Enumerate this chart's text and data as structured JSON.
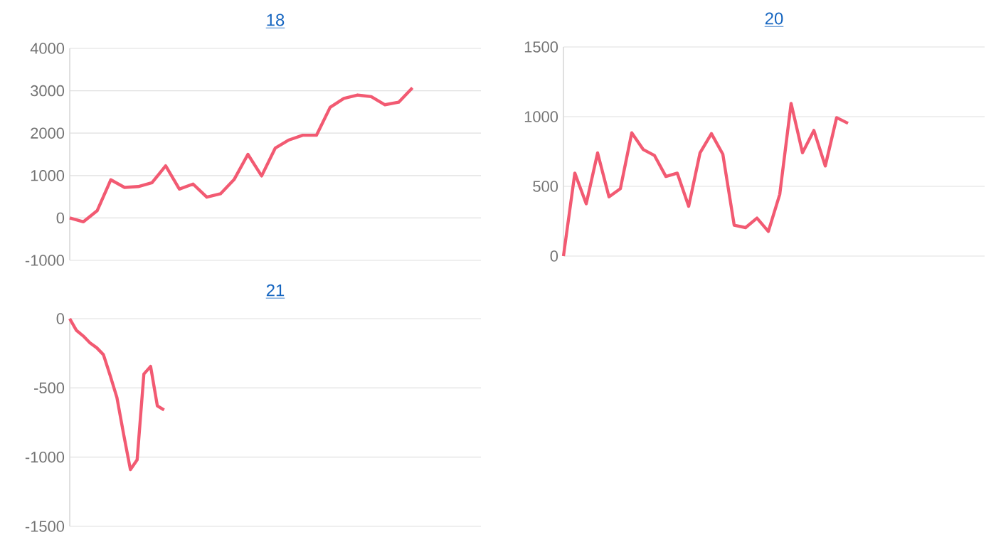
{
  "chart_data": [
    {
      "type": "line",
      "title": "18",
      "categories": [
        null,
        null,
        null,
        null,
        null,
        null,
        null,
        null,
        null,
        null,
        null,
        null,
        null,
        null,
        null,
        null,
        null,
        null,
        null,
        null,
        null,
        null,
        null,
        null,
        null,
        null,
        null,
        null,
        null,
        null,
        null
      ],
      "values": [
        0,
        -90,
        170,
        900,
        720,
        740,
        830,
        1230,
        680,
        800,
        490,
        570,
        910,
        1500,
        990,
        1650,
        1840,
        1950,
        1950,
        2610,
        2820,
        2900,
        2860,
        2670,
        2730,
        3070,
        null,
        null,
        null,
        null,
        null
      ],
      "color": "#f25a72",
      "ylim": [
        -1000,
        4000
      ],
      "yticks": [
        -1000,
        0,
        1000,
        2000,
        3000,
        4000
      ],
      "grid": "y",
      "tick_labels": "y"
    },
    {
      "type": "line",
      "title": "20",
      "categories": [
        null,
        null,
        null,
        null,
        null,
        null,
        null,
        null,
        null,
        null,
        null,
        null,
        null,
        null,
        null,
        null,
        null,
        null,
        null,
        null,
        null,
        null,
        null,
        null,
        null,
        null,
        null,
        null,
        null,
        null,
        null,
        null,
        null,
        null,
        null,
        null,
        null,
        null
      ],
      "values": [
        0,
        595,
        375,
        740,
        425,
        483,
        884,
        765,
        721,
        571,
        595,
        357,
        741,
        878,
        731,
        221,
        204,
        272,
        177,
        442,
        1095,
        741,
        901,
        646,
        993,
        952,
        null,
        null,
        null,
        null,
        null,
        null,
        null,
        null,
        null,
        null,
        null,
        null
      ],
      "color": "#f25a72",
      "ylim": [
        0,
        1500
      ],
      "yticks": [
        0,
        500,
        1000,
        1500
      ],
      "grid": "y",
      "tick_labels": "y"
    },
    {
      "type": "line",
      "title": "21",
      "categories": [
        null,
        null,
        null,
        null,
        null,
        null,
        null,
        null,
        null,
        null,
        null,
        null,
        null,
        null,
        null,
        null,
        null,
        null,
        null,
        null,
        null,
        null,
        null,
        null,
        null,
        null,
        null,
        null,
        null,
        null,
        null,
        null,
        null,
        null,
        null,
        null,
        null,
        null,
        null,
        null,
        null,
        null,
        null,
        null,
        null,
        null,
        null,
        null,
        null,
        null,
        null,
        null,
        null,
        null,
        null,
        null,
        null,
        null,
        null,
        null,
        null,
        null
      ],
      "values": [
        0,
        -85,
        -125,
        -175,
        -210,
        -260,
        -410,
        -570,
        -835,
        -1090,
        -1020,
        -400,
        -345,
        -630,
        -660,
        null,
        null,
        null,
        null,
        null,
        null,
        null,
        null,
        null,
        null,
        null,
        null,
        null,
        null,
        null,
        null,
        null,
        null,
        null,
        null,
        null,
        null,
        null,
        null,
        null,
        null,
        null,
        null,
        null,
        null,
        null,
        null,
        null,
        null,
        null,
        null,
        null,
        null,
        null,
        null,
        null,
        null,
        null,
        null,
        null,
        null,
        null
      ],
      "color": "#f25a72",
      "ylim": [
        -1500,
        0
      ],
      "yticks": [
        -1500,
        -1000,
        -500,
        0
      ],
      "grid": "y",
      "tick_labels": "y"
    }
  ]
}
